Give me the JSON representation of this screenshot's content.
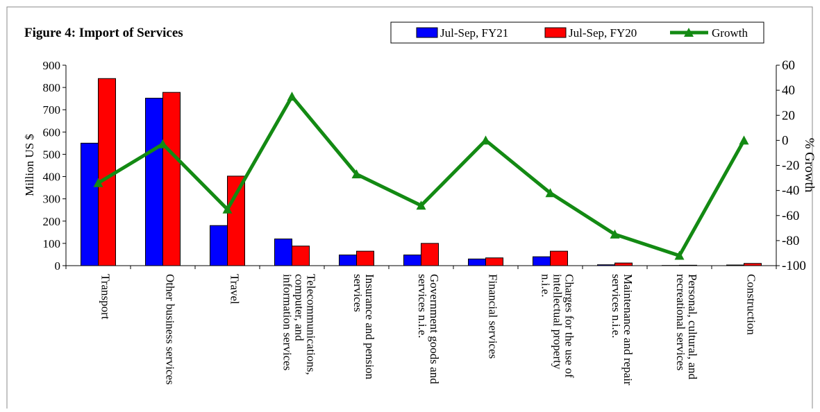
{
  "chart_data": {
    "type": "bar_line",
    "title": "Figure 4: Import of Services",
    "ylabel": "Million US $",
    "y2label": "% Growth",
    "categories": [
      "Transport",
      "Other business services",
      "Travel",
      "Telecommunications,\ncomputer, and\ninformation services",
      "Insurance and pension\nservices",
      "Government goods and\nservices n.i.e.",
      "Financial services",
      "Charges for the use of\nintellectual property\nn.i.e.",
      "Maintenance and repair\nservices n.i.e.",
      "Personal, cultural, and\nrecreational services",
      "Construction"
    ],
    "series": [
      {
        "name": "Jul-Sep, FY21",
        "color": "#0000ff",
        "type": "bar",
        "values": [
          550,
          752,
          180,
          120,
          48,
          48,
          30,
          40,
          4,
          1,
          3
        ]
      },
      {
        "name": "Jul-Sep, FY20",
        "color": "#ff0000",
        "type": "bar",
        "values": [
          840,
          778,
          402,
          88,
          65,
          100,
          35,
          65,
          12,
          2,
          10
        ]
      },
      {
        "name": "Growth",
        "color": "#138a13",
        "type": "line",
        "axis": "y2",
        "values": [
          -34,
          -3,
          -55,
          35,
          -27,
          -52,
          0,
          -42,
          -75,
          -92,
          0
        ]
      }
    ],
    "ylim": [
      0,
      900
    ],
    "yticks": [
      0,
      100,
      200,
      300,
      400,
      500,
      600,
      700,
      800,
      900
    ],
    "y2lim": [
      -100,
      60
    ],
    "y2ticks": [
      -100,
      -80,
      -60,
      -40,
      -20,
      0,
      20,
      40,
      60
    ],
    "legend": "top-right"
  }
}
